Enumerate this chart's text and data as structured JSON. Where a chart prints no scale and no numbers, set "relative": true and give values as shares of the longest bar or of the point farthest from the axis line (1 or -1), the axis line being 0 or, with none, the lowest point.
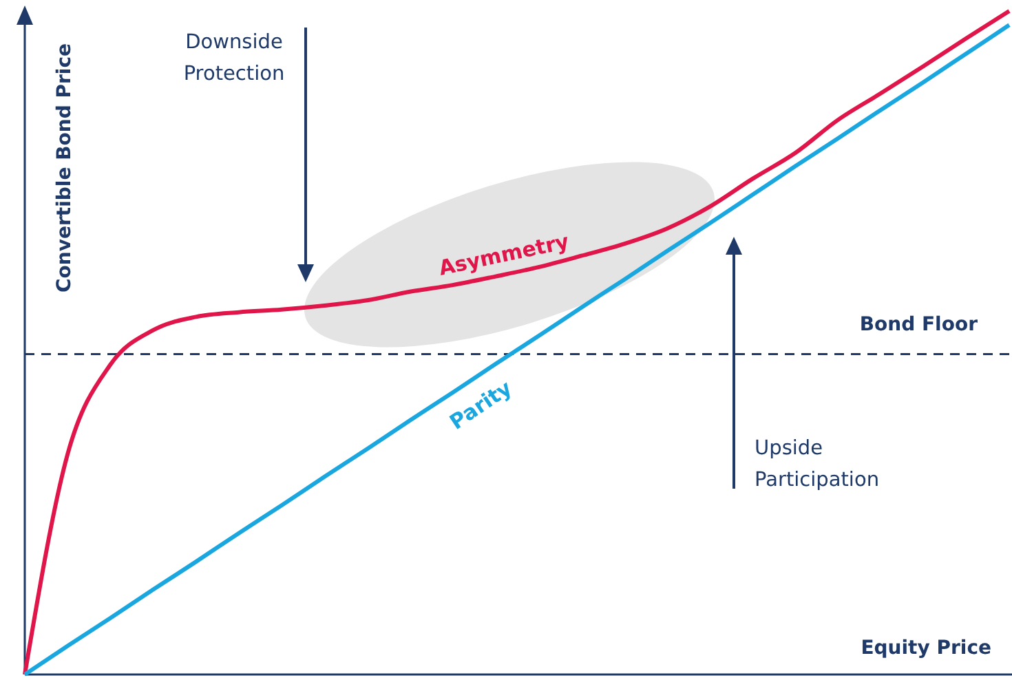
{
  "chart_data": {
    "type": "line",
    "relative": true,
    "xlabel": "Equity Price",
    "ylabel": "Convertible Bond Price",
    "categories": [
      null,
      null,
      null,
      null,
      null,
      null,
      null,
      null,
      null,
      null,
      null,
      null,
      null,
      null,
      null,
      null,
      null,
      null,
      null,
      null,
      null,
      null,
      null,
      null
    ],
    "series": [
      {
        "color": "#e0164a",
        "values": [
          0,
          0.332,
          0.467,
          0.519,
          0.539,
          0.546,
          0.55,
          0.556,
          0.564,
          0.577,
          0.587,
          0.6,
          0.614,
          0.631,
          0.649,
          0.672,
          0.705,
          0.747,
          0.786,
          0.836,
          0.876,
          0.917,
          0.959,
          1
        ]
      },
      {
        "name": "Parity",
        "color": "#1aa7e0",
        "values": [
          0,
          0.043,
          0.085,
          0.128,
          0.17,
          0.213,
          0.255,
          0.298,
          0.34,
          0.383,
          0.425,
          0.468,
          0.51,
          0.553,
          0.595,
          0.638,
          0.68,
          0.723,
          0.766,
          0.808,
          0.851,
          0.893,
          0.936,
          0.979
        ]
      }
    ],
    "ref_lines": [
      {
        "axis": "y",
        "value": 0.483,
        "label": "Bond Floor",
        "color": "#1f3a68",
        "line_style": "dashed"
      }
    ],
    "annotations": [
      "Downside Protection",
      "Asymmetry",
      "Upside Participation"
    ],
    "line_style": "solid",
    "marker": "none"
  }
}
